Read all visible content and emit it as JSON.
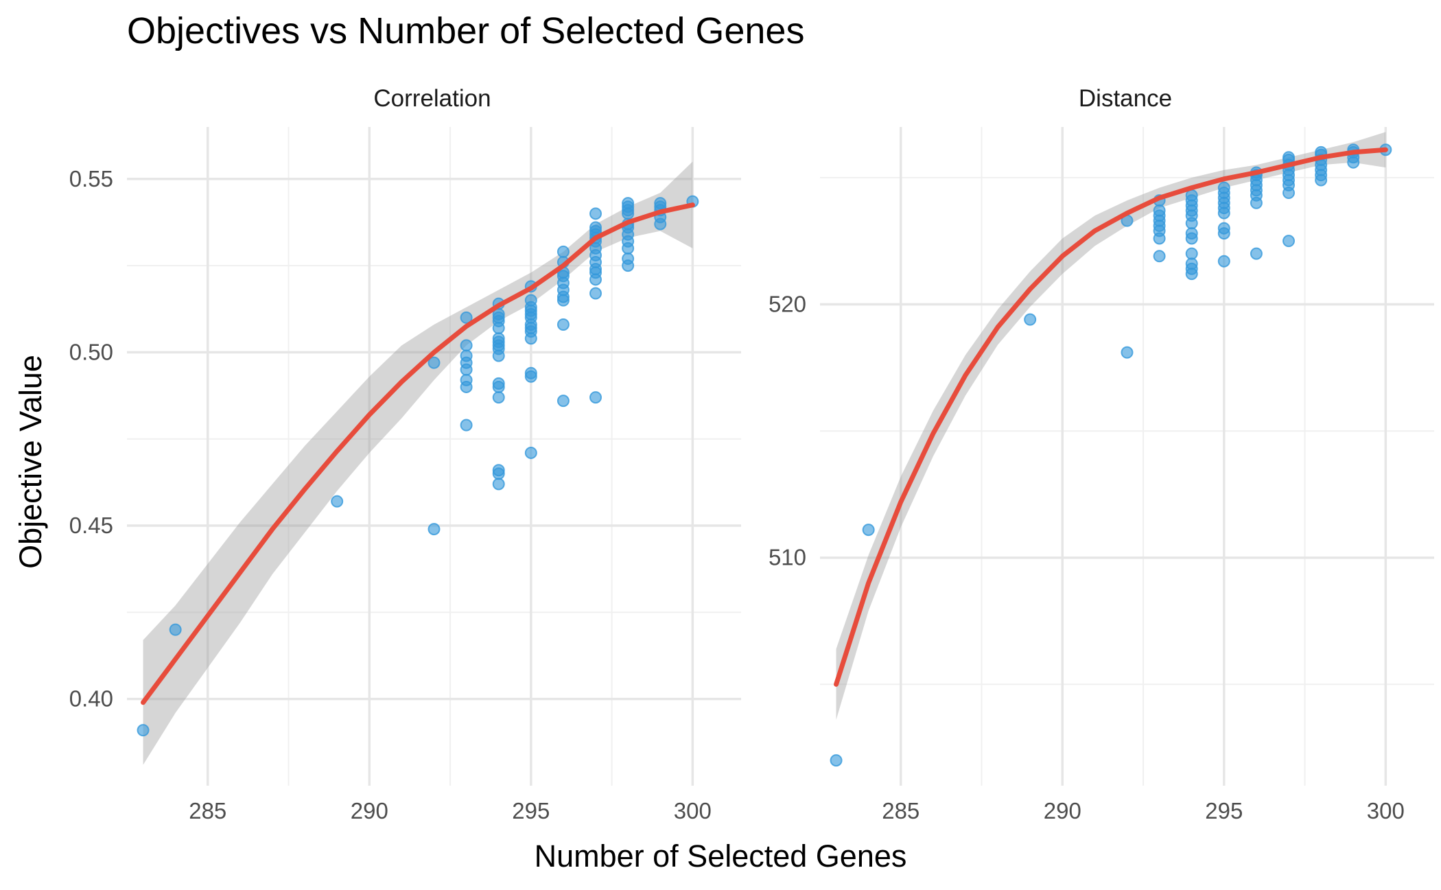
{
  "chart_data": {
    "type": "scatter",
    "title": "Objectives vs Number of Selected Genes",
    "xlabel": "Number of Selected Genes",
    "ylabel": "Objective Value",
    "point_color": "#3498db",
    "smooth_color": "#e74c3c",
    "ribbon_color": "#999999",
    "grid": true,
    "panels": [
      {
        "name": "Correlation",
        "xlim": [
          282.5,
          301.5
        ],
        "ylim": [
          0.375,
          0.565
        ],
        "x_ticks": [
          285,
          290,
          295,
          300
        ],
        "y_ticks": [
          0.4,
          0.45,
          0.5,
          0.55
        ],
        "y_tick_labels": [
          "0.40",
          "0.45",
          "0.50",
          "0.55"
        ],
        "points": [
          [
            283,
            0.391
          ],
          [
            284,
            0.42
          ],
          [
            289,
            0.457
          ],
          [
            292,
            0.449
          ],
          [
            292,
            0.497
          ],
          [
            293,
            0.479
          ],
          [
            293,
            0.49
          ],
          [
            293,
            0.492
          ],
          [
            293,
            0.495
          ],
          [
            293,
            0.497
          ],
          [
            293,
            0.499
          ],
          [
            293,
            0.502
          ],
          [
            293,
            0.51
          ],
          [
            294,
            0.462
          ],
          [
            294,
            0.465
          ],
          [
            294,
            0.466
          ],
          [
            294,
            0.487
          ],
          [
            294,
            0.49
          ],
          [
            294,
            0.491
          ],
          [
            294,
            0.499
          ],
          [
            294,
            0.501
          ],
          [
            294,
            0.502
          ],
          [
            294,
            0.503
          ],
          [
            294,
            0.504
          ],
          [
            294,
            0.507
          ],
          [
            294,
            0.509
          ],
          [
            294,
            0.51
          ],
          [
            294,
            0.511
          ],
          [
            294,
            0.514
          ],
          [
            295,
            0.471
          ],
          [
            295,
            0.493
          ],
          [
            295,
            0.494
          ],
          [
            295,
            0.504
          ],
          [
            295,
            0.506
          ],
          [
            295,
            0.507
          ],
          [
            295,
            0.508
          ],
          [
            295,
            0.51
          ],
          [
            295,
            0.511
          ],
          [
            295,
            0.512
          ],
          [
            295,
            0.513
          ],
          [
            295,
            0.515
          ],
          [
            295,
            0.519
          ],
          [
            296,
            0.486
          ],
          [
            296,
            0.508
          ],
          [
            296,
            0.515
          ],
          [
            296,
            0.516
          ],
          [
            296,
            0.518
          ],
          [
            296,
            0.52
          ],
          [
            296,
            0.522
          ],
          [
            296,
            0.523
          ],
          [
            296,
            0.526
          ],
          [
            296,
            0.529
          ],
          [
            297,
            0.487
          ],
          [
            297,
            0.517
          ],
          [
            297,
            0.521
          ],
          [
            297,
            0.523
          ],
          [
            297,
            0.524
          ],
          [
            297,
            0.526
          ],
          [
            297,
            0.528
          ],
          [
            297,
            0.53
          ],
          [
            297,
            0.532
          ],
          [
            297,
            0.533
          ],
          [
            297,
            0.534
          ],
          [
            297,
            0.535
          ],
          [
            297,
            0.536
          ],
          [
            297,
            0.54
          ],
          [
            298,
            0.525
          ],
          [
            298,
            0.527
          ],
          [
            298,
            0.53
          ],
          [
            298,
            0.532
          ],
          [
            298,
            0.534
          ],
          [
            298,
            0.536
          ],
          [
            298,
            0.537
          ],
          [
            298,
            0.54
          ],
          [
            298,
            0.541
          ],
          [
            298,
            0.542
          ],
          [
            298,
            0.543
          ],
          [
            299,
            0.537
          ],
          [
            299,
            0.539
          ],
          [
            299,
            0.541
          ],
          [
            299,
            0.542
          ],
          [
            299,
            0.543
          ],
          [
            300,
            0.5435
          ]
        ],
        "smooth": [
          [
            283,
            0.399,
            0.381,
            0.417
          ],
          [
            284,
            0.4115,
            0.396,
            0.427
          ],
          [
            285,
            0.424,
            0.409,
            0.439
          ],
          [
            286,
            0.4365,
            0.422,
            0.451
          ],
          [
            287,
            0.449,
            0.436,
            0.462
          ],
          [
            288,
            0.4605,
            0.448,
            0.473
          ],
          [
            289,
            0.4715,
            0.46,
            0.483
          ],
          [
            290,
            0.482,
            0.471,
            0.493
          ],
          [
            291,
            0.4915,
            0.481,
            0.502
          ],
          [
            292,
            0.5,
            0.492,
            0.508
          ],
          [
            293,
            0.5075,
            0.502,
            0.513
          ],
          [
            294,
            0.5135,
            0.509,
            0.518
          ],
          [
            295,
            0.5185,
            0.514,
            0.523
          ],
          [
            296,
            0.525,
            0.521,
            0.529
          ],
          [
            297,
            0.533,
            0.529,
            0.537
          ],
          [
            298,
            0.5375,
            0.533,
            0.542
          ],
          [
            299,
            0.5405,
            0.535,
            0.546
          ],
          [
            300,
            0.5425,
            0.53,
            0.555
          ]
        ]
      },
      {
        "name": "Distance",
        "xlim": [
          282.5,
          301.5
        ],
        "ylim": [
          501.0,
          527.0
        ],
        "x_ticks": [
          285,
          290,
          295,
          300
        ],
        "y_ticks": [
          510,
          520
        ],
        "y_tick_labels": [
          "510",
          "520"
        ],
        "points": [
          [
            283,
            502.0
          ],
          [
            284,
            511.1
          ],
          [
            289,
            519.4
          ],
          [
            292,
            518.1
          ],
          [
            292,
            523.3
          ],
          [
            293,
            521.9
          ],
          [
            293,
            522.6
          ],
          [
            293,
            522.9
          ],
          [
            293,
            523.1
          ],
          [
            293,
            523.3
          ],
          [
            293,
            523.5
          ],
          [
            293,
            523.7
          ],
          [
            293,
            524.1
          ],
          [
            294,
            521.2
          ],
          [
            294,
            521.4
          ],
          [
            294,
            521.6
          ],
          [
            294,
            522.0
          ],
          [
            294,
            522.6
          ],
          [
            294,
            522.8
          ],
          [
            294,
            523.2
          ],
          [
            294,
            523.5
          ],
          [
            294,
            523.7
          ],
          [
            294,
            523.9
          ],
          [
            294,
            524.1
          ],
          [
            294,
            524.3
          ],
          [
            295,
            521.7
          ],
          [
            295,
            522.8
          ],
          [
            295,
            523.0
          ],
          [
            295,
            523.6
          ],
          [
            295,
            523.8
          ],
          [
            295,
            524.0
          ],
          [
            295,
            524.2
          ],
          [
            295,
            524.4
          ],
          [
            295,
            524.6
          ],
          [
            296,
            522.0
          ],
          [
            296,
            524.0
          ],
          [
            296,
            524.3
          ],
          [
            296,
            524.5
          ],
          [
            296,
            524.7
          ],
          [
            296,
            524.9
          ],
          [
            296,
            525.1
          ],
          [
            296,
            525.2
          ],
          [
            297,
            522.5
          ],
          [
            297,
            524.4
          ],
          [
            297,
            524.7
          ],
          [
            297,
            524.9
          ],
          [
            297,
            525.1
          ],
          [
            297,
            525.3
          ],
          [
            297,
            525.5
          ],
          [
            297,
            525.7
          ],
          [
            297,
            525.8
          ],
          [
            298,
            524.9
          ],
          [
            298,
            525.1
          ],
          [
            298,
            525.3
          ],
          [
            298,
            525.5
          ],
          [
            298,
            525.7
          ],
          [
            298,
            525.9
          ],
          [
            298,
            526.0
          ],
          [
            299,
            525.6
          ],
          [
            299,
            525.8
          ],
          [
            299,
            526.0
          ],
          [
            299,
            526.1
          ],
          [
            300,
            526.1
          ]
        ],
        "smooth": [
          [
            283,
            505.0,
            503.6,
            506.4
          ],
          [
            284,
            509.0,
            507.9,
            510.1
          ],
          [
            285,
            512.2,
            511.2,
            513.2
          ],
          [
            286,
            514.9,
            514.0,
            515.8
          ],
          [
            287,
            517.2,
            516.4,
            518.0
          ],
          [
            288,
            519.1,
            518.4,
            519.8
          ],
          [
            289,
            520.6,
            519.9,
            521.3
          ],
          [
            290,
            521.9,
            521.2,
            522.6
          ],
          [
            291,
            522.9,
            522.3,
            523.5
          ],
          [
            292,
            523.6,
            523.1,
            524.1
          ],
          [
            293,
            524.2,
            523.8,
            524.6
          ],
          [
            294,
            524.6,
            524.2,
            525.0
          ],
          [
            295,
            524.95,
            524.6,
            525.3
          ],
          [
            296,
            525.2,
            524.9,
            525.5
          ],
          [
            297,
            525.5,
            525.2,
            525.8
          ],
          [
            298,
            525.8,
            525.5,
            526.1
          ],
          [
            299,
            526.0,
            525.6,
            526.4
          ],
          [
            300,
            526.1,
            525.4,
            526.8
          ]
        ]
      }
    ]
  }
}
